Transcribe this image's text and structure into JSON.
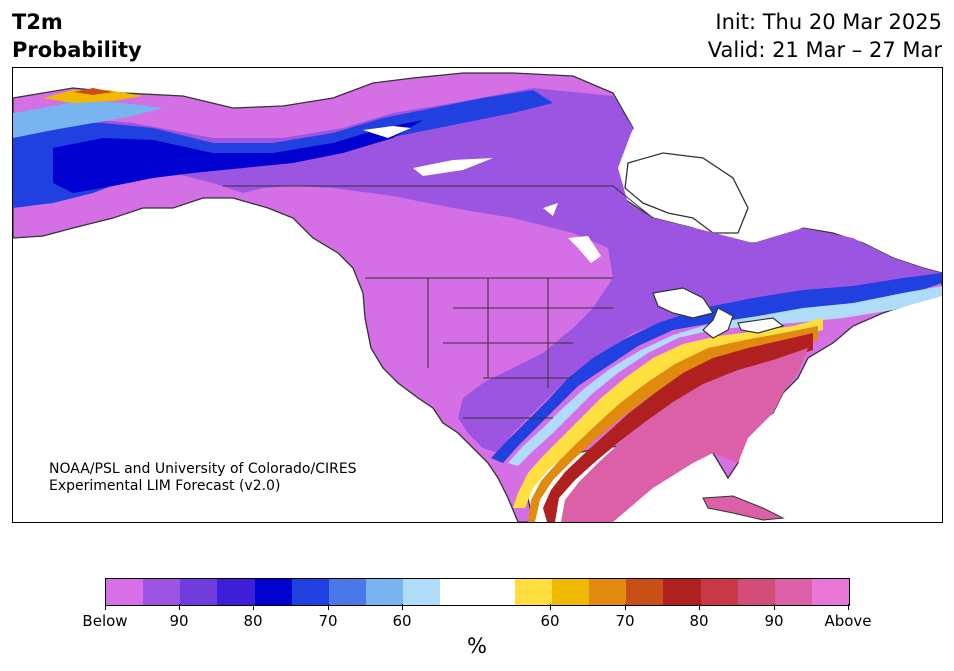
{
  "header": {
    "title_line1": "T2m",
    "title_line2": "Probability",
    "init_text": "Init: Thu 20 Mar 2025",
    "valid_text": "Valid: 21 Mar – 27 Mar"
  },
  "credit": {
    "line1": "NOAA/PSL and University of Colorado/CIRES",
    "line2": "Experimental LIM Forecast (v2.0)"
  },
  "colorbar": {
    "unit": "%",
    "colors": [
      "#d76fe8",
      "#9b55e0",
      "#6f3ddd",
      "#3e1fd8",
      "#0000d0",
      "#2040e0",
      "#4a78e8",
      "#78b4f0",
      "#b0dcfa",
      "#ffffff",
      "#ffffff",
      "#ffe040",
      "#f0b800",
      "#e08a10",
      "#c85018",
      "#b02020",
      "#c83848",
      "#d44c78",
      "#dc60a8",
      "#e878d8"
    ],
    "ticks": [
      {
        "label": "Below"
      },
      {
        "label": "90"
      },
      {
        "label": "80"
      },
      {
        "label": "70"
      },
      {
        "label": "60"
      },
      {
        "label": "60"
      },
      {
        "label": "70"
      },
      {
        "label": "80"
      },
      {
        "label": "90"
      },
      {
        "label": "Above"
      }
    ]
  },
  "map": {
    "land_color": "#d46fe6",
    "ocean_color": "#ffffff",
    "boundary_color": "#333333"
  }
}
